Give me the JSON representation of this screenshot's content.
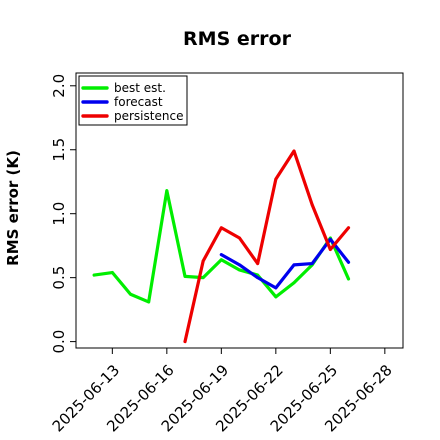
{
  "chart_data": {
    "type": "line",
    "title": "RMS error",
    "xlabel": "",
    "ylabel": "RMS error (K)",
    "x_tick_labels": [
      "2025-06-13",
      "2025-06-16",
      "2025-06-19",
      "2025-06-22",
      "2025-06-25",
      "2025-06-28"
    ],
    "highlight_tick": "2025-06-19",
    "highlight_color": "#228b22",
    "y_tick_labels": [
      "0.0",
      "0.5",
      "1.0",
      "1.5",
      "2.0"
    ],
    "xlim": [
      "2025-06-11",
      "2025-06-29"
    ],
    "ylim": [
      -0.05,
      2.1
    ],
    "grid": false,
    "legend_position": "top-left",
    "series": [
      {
        "name": "best est.",
        "color": "#00ee00",
        "x": [
          "2025-06-12",
          "2025-06-13",
          "2025-06-14",
          "2025-06-15",
          "2025-06-16",
          "2025-06-17",
          "2025-06-18",
          "2025-06-19",
          "2025-06-20",
          "2025-06-21",
          "2025-06-22",
          "2025-06-23",
          "2025-06-24",
          "2025-06-25",
          "2025-06-26"
        ],
        "values": [
          0.52,
          0.54,
          0.37,
          0.31,
          1.18,
          0.51,
          0.5,
          0.64,
          0.56,
          0.52,
          0.35,
          0.46,
          0.6,
          0.81,
          0.49
        ]
      },
      {
        "name": "forecast",
        "color": "#0000ee",
        "x": [
          "2025-06-19",
          "2025-06-20",
          "2025-06-21",
          "2025-06-22",
          "2025-06-23",
          "2025-06-24",
          "2025-06-25",
          "2025-06-26"
        ],
        "values": [
          0.68,
          0.6,
          0.5,
          0.42,
          0.6,
          0.61,
          0.8,
          0.62
        ]
      },
      {
        "name": "persistence",
        "color": "#ee0000",
        "x": [
          "2025-06-17",
          "2025-06-18",
          "2025-06-19",
          "2025-06-20",
          "2025-06-21",
          "2025-06-22",
          "2025-06-23",
          "2025-06-24",
          "2025-06-25",
          "2025-06-26"
        ],
        "values": [
          0.0,
          0.63,
          0.89,
          0.81,
          0.61,
          1.27,
          1.49,
          1.07,
          0.72,
          0.89
        ]
      }
    ]
  }
}
